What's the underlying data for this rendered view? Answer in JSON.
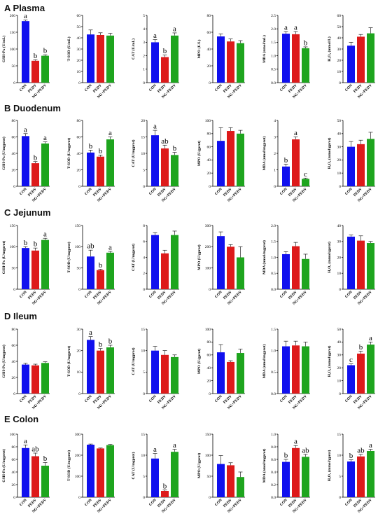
{
  "colors": {
    "CON": "#1010ee",
    "PEDV": "#dd1a1a",
    "NG+PEDV": "#1ea51e"
  },
  "sections": [
    {
      "letter": "A",
      "name": "Plasma"
    },
    {
      "letter": "B",
      "name": "Duodenum"
    },
    {
      "letter": "C",
      "name": "Jejunum"
    },
    {
      "letter": "D",
      "name": "Ileum"
    },
    {
      "letter": "E",
      "name": "Colon"
    }
  ],
  "chart_data": [
    {
      "section": "Plasma",
      "type": "bar",
      "ylabel": "GSH-Px (U/mL)",
      "categories": [
        "CON",
        "PEDV",
        "NG+PEDV"
      ],
      "values": [
        183,
        65,
        80
      ],
      "errors": [
        3,
        3,
        3
      ],
      "letters": [
        "a",
        "b",
        "b"
      ],
      "ylim": [
        0,
        200
      ],
      "yticks": [
        0,
        50,
        100,
        150,
        200
      ]
    },
    {
      "section": "Plasma",
      "type": "bar",
      "ylabel": "T-SOD (U/mL)",
      "categories": [
        "CON",
        "PEDV",
        "NG+PEDV"
      ],
      "values": [
        43,
        42.5,
        42
      ],
      "errors": [
        4,
        2,
        2
      ],
      "letters": [
        "",
        "",
        ""
      ],
      "ylim": [
        0,
        60
      ],
      "yticks": [
        0,
        10,
        20,
        30,
        40,
        50,
        60
      ]
    },
    {
      "section": "Plasma",
      "type": "bar",
      "ylabel": "CAT (U/mL)",
      "categories": [
        "CON",
        "PEDV",
        "NG+PEDV"
      ],
      "values": [
        3.0,
        1.9,
        3.5
      ],
      "errors": [
        0.2,
        0.15,
        0.2
      ],
      "letters": [
        "a",
        "b",
        "a"
      ],
      "ylim": [
        0,
        5
      ],
      "yticks": [
        0,
        1,
        2,
        3,
        4,
        5
      ]
    },
    {
      "section": "Plasma",
      "type": "bar",
      "ylabel": "MPO (U/L)",
      "categories": [
        "CON",
        "PEDV",
        "NG+PEDV"
      ],
      "values": [
        55,
        49,
        47
      ],
      "errors": [
        3,
        3,
        3
      ],
      "letters": [
        "",
        "",
        ""
      ],
      "ylim": [
        0,
        80
      ],
      "yticks": [
        0,
        20,
        40,
        60,
        80
      ]
    },
    {
      "section": "Plasma",
      "type": "bar",
      "ylabel": "MDA (nmol/mL)",
      "categories": [
        "CON",
        "PEDV",
        "NG+PEDV"
      ],
      "values": [
        1.82,
        1.8,
        1.28
      ],
      "errors": [
        0.08,
        0.1,
        0.05
      ],
      "letters": [
        "a",
        "a",
        "b"
      ],
      "ylim": [
        0,
        2.5
      ],
      "yticks": [
        0,
        0.5,
        1.0,
        1.5,
        2.0,
        2.5
      ]
    },
    {
      "section": "Plasma",
      "type": "bar",
      "ylabel": "H₂O₂ (mmol/L)",
      "categories": [
        "CON",
        "PEDV",
        "NG+PEDV"
      ],
      "values": [
        33,
        41,
        44
      ],
      "errors": [
        3,
        2,
        5
      ],
      "letters": [
        "",
        "",
        ""
      ],
      "ylim": [
        0,
        60
      ],
      "yticks": [
        0,
        10,
        20,
        30,
        40,
        50,
        60
      ]
    },
    {
      "section": "Duodenum",
      "type": "bar",
      "ylabel": "GSH-Px (U/mgprot)",
      "categories": [
        "CON",
        "PEDV",
        "NG+PEDV"
      ],
      "values": [
        61,
        28,
        52
      ],
      "errors": [
        3,
        2,
        2
      ],
      "letters": [
        "a",
        "b",
        "a"
      ],
      "ylim": [
        0,
        80
      ],
      "yticks": [
        0,
        20,
        40,
        60,
        80
      ]
    },
    {
      "section": "Duodenum",
      "type": "bar",
      "ylabel": "T-SOD (U/mgprot)",
      "categories": [
        "CON",
        "PEDV",
        "NG+PEDV"
      ],
      "values": [
        41,
        36,
        57
      ],
      "errors": [
        3,
        2,
        3
      ],
      "letters": [
        "b",
        "b",
        "a"
      ],
      "ylim": [
        0,
        80
      ],
      "yticks": [
        0,
        20,
        40,
        60,
        80
      ]
    },
    {
      "section": "Duodenum",
      "type": "bar",
      "ylabel": "CAT (U/mgprot)",
      "categories": [
        "CON",
        "PEDV",
        "NG+PEDV"
      ],
      "values": [
        15.5,
        11.5,
        9.5
      ],
      "errors": [
        1.5,
        1,
        0.8
      ],
      "letters": [
        "a",
        "ab",
        "b"
      ],
      "ylim": [
        0,
        20
      ],
      "yticks": [
        0,
        5,
        10,
        15,
        20
      ]
    },
    {
      "section": "Duodenum",
      "type": "bar",
      "ylabel": "MPO (U/gprot)",
      "categories": [
        "CON",
        "PEDV",
        "NG+PEDV"
      ],
      "values": [
        69,
        84,
        80
      ],
      "errors": [
        20,
        5,
        5
      ],
      "letters": [
        "",
        "",
        ""
      ],
      "ylim": [
        0,
        100
      ],
      "yticks": [
        0,
        20,
        40,
        60,
        80,
        100
      ]
    },
    {
      "section": "Duodenum",
      "type": "bar",
      "ylabel": "MDA (nmol/mgprot)",
      "categories": [
        "CON",
        "PEDV",
        "NG+PEDV"
      ],
      "values": [
        1.2,
        2.85,
        0.45
      ],
      "errors": [
        0.15,
        0.15,
        0.05
      ],
      "letters": [
        "b",
        "a",
        "c"
      ],
      "ylim": [
        0,
        4
      ],
      "yticks": [
        0,
        1,
        2,
        3,
        4
      ]
    },
    {
      "section": "Duodenum",
      "type": "bar",
      "ylabel": "H₂O₂ (mmol/gprot)",
      "categories": [
        "CON",
        "PEDV",
        "NG+PEDV"
      ],
      "values": [
        30,
        32,
        36
      ],
      "errors": [
        4,
        3,
        5
      ],
      "letters": [
        "",
        "",
        ""
      ],
      "ylim": [
        0,
        50
      ],
      "yticks": [
        0,
        10,
        20,
        30,
        40,
        50
      ]
    },
    {
      "section": "Jejunum",
      "type": "bar",
      "ylabel": "GSH-Px (U/mgprot)",
      "categories": [
        "CON",
        "PEDV",
        "NG+PEDV"
      ],
      "values": [
        97,
        91,
        116
      ],
      "errors": [
        3,
        6,
        4
      ],
      "letters": [
        "b",
        "b",
        "a"
      ],
      "ylim": [
        0,
        150
      ],
      "yticks": [
        0,
        50,
        100,
        150
      ]
    },
    {
      "section": "Jejunum",
      "type": "bar",
      "ylabel": "T-SOD (U/mgprot)",
      "categories": [
        "CON",
        "PEDV",
        "NG+PEDV"
      ],
      "values": [
        77,
        45,
        86
      ],
      "errors": [
        15,
        2,
        3
      ],
      "letters": [
        "ab",
        "b",
        "a"
      ],
      "ylim": [
        0,
        150
      ],
      "yticks": [
        0,
        50,
        100,
        150
      ]
    },
    {
      "section": "Jejunum",
      "type": "bar",
      "ylabel": "CAT (U/mgprot)",
      "categories": [
        "CON",
        "PEDV",
        "NG+PEDV"
      ],
      "values": [
        6.8,
        4.5,
        6.8
      ],
      "errors": [
        0.3,
        0.4,
        0.5
      ],
      "letters": [
        "",
        "",
        ""
      ],
      "ylim": [
        0,
        8
      ],
      "yticks": [
        0,
        2,
        4,
        6,
        8
      ]
    },
    {
      "section": "Jejunum",
      "type": "bar",
      "ylabel": "MPO (U/gprot)",
      "categories": [
        "CON",
        "PEDV",
        "NG+PEDV"
      ],
      "values": [
        250,
        200,
        150
      ],
      "errors": [
        20,
        10,
        50
      ],
      "letters": [
        "",
        "",
        ""
      ],
      "ylim": [
        0,
        300
      ],
      "yticks": [
        0,
        100,
        200,
        300
      ]
    },
    {
      "section": "Jejunum",
      "type": "bar",
      "ylabel": "MDA (nmol/mgprot)",
      "categories": [
        "CON",
        "PEDV",
        "NG+PEDV"
      ],
      "values": [
        1.1,
        1.35,
        0.95
      ],
      "errors": [
        0.08,
        0.12,
        0.15
      ],
      "letters": [
        "",
        "",
        ""
      ],
      "ylim": [
        0,
        2.0
      ],
      "yticks": [
        0,
        0.5,
        1.0,
        1.5,
        2.0
      ]
    },
    {
      "section": "Jejunum",
      "type": "bar",
      "ylabel": "H₂O₂ (mmol/gprot)",
      "categories": [
        "CON",
        "PEDV",
        "NG+PEDV"
      ],
      "values": [
        33,
        30.5,
        29
      ],
      "errors": [
        1,
        3,
        1
      ],
      "letters": [
        "",
        "",
        ""
      ],
      "ylim": [
        0,
        40
      ],
      "yticks": [
        0,
        10,
        20,
        30,
        40
      ]
    },
    {
      "section": "Ileum",
      "type": "bar",
      "ylabel": "GSH-Px (U/mgprot)",
      "categories": [
        "CON",
        "PEDV",
        "NG+PEDV"
      ],
      "values": [
        36,
        35,
        38
      ],
      "errors": [
        1.5,
        1.5,
        1.5
      ],
      "letters": [
        "",
        "",
        ""
      ],
      "ylim": [
        0,
        80
      ],
      "yticks": [
        0,
        20,
        40,
        60,
        80
      ]
    },
    {
      "section": "Ileum",
      "type": "bar",
      "ylabel": "T-SOD (U/mgprot)",
      "categories": [
        "CON",
        "PEDV",
        "NG+PEDV"
      ],
      "values": [
        25,
        20,
        21.5
      ],
      "errors": [
        1.5,
        1,
        1
      ],
      "letters": [
        "a",
        "b",
        "b"
      ],
      "ylim": [
        0,
        30
      ],
      "yticks": [
        0,
        10,
        20,
        30
      ]
    },
    {
      "section": "Ileum",
      "type": "bar",
      "ylabel": "CAT (U/mgprot)",
      "categories": [
        "CON",
        "PEDV",
        "NG+PEDV"
      ],
      "values": [
        10,
        9,
        8.5
      ],
      "errors": [
        1,
        1,
        0.5
      ],
      "letters": [
        "",
        "",
        ""
      ],
      "ylim": [
        0,
        15
      ],
      "yticks": [
        0,
        5,
        10,
        15
      ]
    },
    {
      "section": "Ileum",
      "type": "bar",
      "ylabel": "MPO (U/gprot)",
      "categories": [
        "CON",
        "PEDV",
        "NG+PEDV"
      ],
      "values": [
        64,
        49,
        63
      ],
      "errors": [
        12,
        2,
        6
      ],
      "letters": [
        "",
        "",
        ""
      ],
      "ylim": [
        0,
        100
      ],
      "yticks": [
        0,
        20,
        40,
        60,
        80,
        100
      ]
    },
    {
      "section": "Ileum",
      "type": "bar",
      "ylabel": "MDA (nmol/mgprot)",
      "categories": [
        "CON",
        "PEDV",
        "NG+PEDV"
      ],
      "values": [
        1.1,
        1.12,
        1.1
      ],
      "errors": [
        0.12,
        0.1,
        0.1
      ],
      "letters": [
        "",
        "",
        ""
      ],
      "ylim": [
        0,
        1.5
      ],
      "yticks": [
        0,
        0.5,
        1.0,
        1.5
      ]
    },
    {
      "section": "Ileum",
      "type": "bar",
      "ylabel": "H₂O₂ (mmol/gprot)",
      "categories": [
        "CON",
        "PEDV",
        "NG+PEDV"
      ],
      "values": [
        22,
        31,
        38
      ],
      "errors": [
        1,
        2,
        2
      ],
      "letters": [
        "c",
        "b",
        "a"
      ],
      "ylim": [
        0,
        50
      ],
      "yticks": [
        0,
        10,
        20,
        30,
        40,
        50
      ]
    },
    {
      "section": "Colon",
      "type": "bar",
      "ylabel": "GSH-Px (U/mgprot)",
      "categories": [
        "CON",
        "PEDV",
        "NG+PEDV"
      ],
      "values": [
        78,
        65,
        50
      ],
      "errors": [
        5,
        5,
        5
      ],
      "letters": [
        "a",
        "ab",
        "b"
      ],
      "ylim": [
        0,
        100
      ],
      "yticks": [
        0,
        20,
        40,
        60,
        80,
        100
      ]
    },
    {
      "section": "Colon",
      "type": "bar",
      "ylabel": "T-SOD (U/mgprot)",
      "categories": [
        "CON",
        "PEDV",
        "NG+PEDV"
      ],
      "values": [
        250,
        232,
        248
      ],
      "errors": [
        3,
        2,
        3
      ],
      "letters": [
        "",
        "",
        ""
      ],
      "ylim": [
        0,
        300
      ],
      "yticks": [
        0,
        100,
        200,
        300
      ]
    },
    {
      "section": "Colon",
      "type": "bar",
      "ylabel": "CAT (U/mgprot)",
      "categories": [
        "CON",
        "PEDV",
        "NG+PEDV"
      ],
      "values": [
        9.2,
        1.5,
        10.8
      ],
      "errors": [
        1.2,
        0.2,
        0.6
      ],
      "letters": [
        "a",
        "b",
        "a"
      ],
      "ylim": [
        0,
        15
      ],
      "yticks": [
        0,
        5,
        10,
        15
      ]
    },
    {
      "section": "Colon",
      "type": "bar",
      "ylabel": "MPO (U/gprot)",
      "categories": [
        "CON",
        "PEDV",
        "NG+PEDV"
      ],
      "values": [
        79,
        76,
        48
      ],
      "errors": [
        20,
        6,
        12
      ],
      "letters": [
        "",
        "",
        ""
      ],
      "ylim": [
        0,
        150
      ],
      "yticks": [
        0,
        50,
        100,
        150
      ]
    },
    {
      "section": "Colon",
      "type": "bar",
      "ylabel": "MDA (nmol/mgprot)",
      "categories": [
        "CON",
        "PEDV",
        "NG+PEDV"
      ],
      "values": [
        0.56,
        0.78,
        0.64
      ],
      "errors": [
        0.04,
        0.04,
        0.04
      ],
      "letters": [
        "b",
        "a",
        "ab"
      ],
      "ylim": [
        0,
        1.0
      ],
      "yticks": [
        0,
        0.2,
        0.4,
        0.6,
        0.8,
        1.0
      ]
    },
    {
      "section": "Colon",
      "type": "bar",
      "ylabel": "H₂O₂ (mmol/gprot)",
      "categories": [
        "CON",
        "PEDV",
        "NG+PEDV"
      ],
      "values": [
        8.5,
        9.7,
        11
      ],
      "errors": [
        0.4,
        0.5,
        0.4
      ],
      "letters": [
        "b",
        "ab",
        "a"
      ],
      "ylim": [
        0,
        15
      ],
      "yticks": [
        0,
        5,
        10,
        15
      ]
    }
  ]
}
